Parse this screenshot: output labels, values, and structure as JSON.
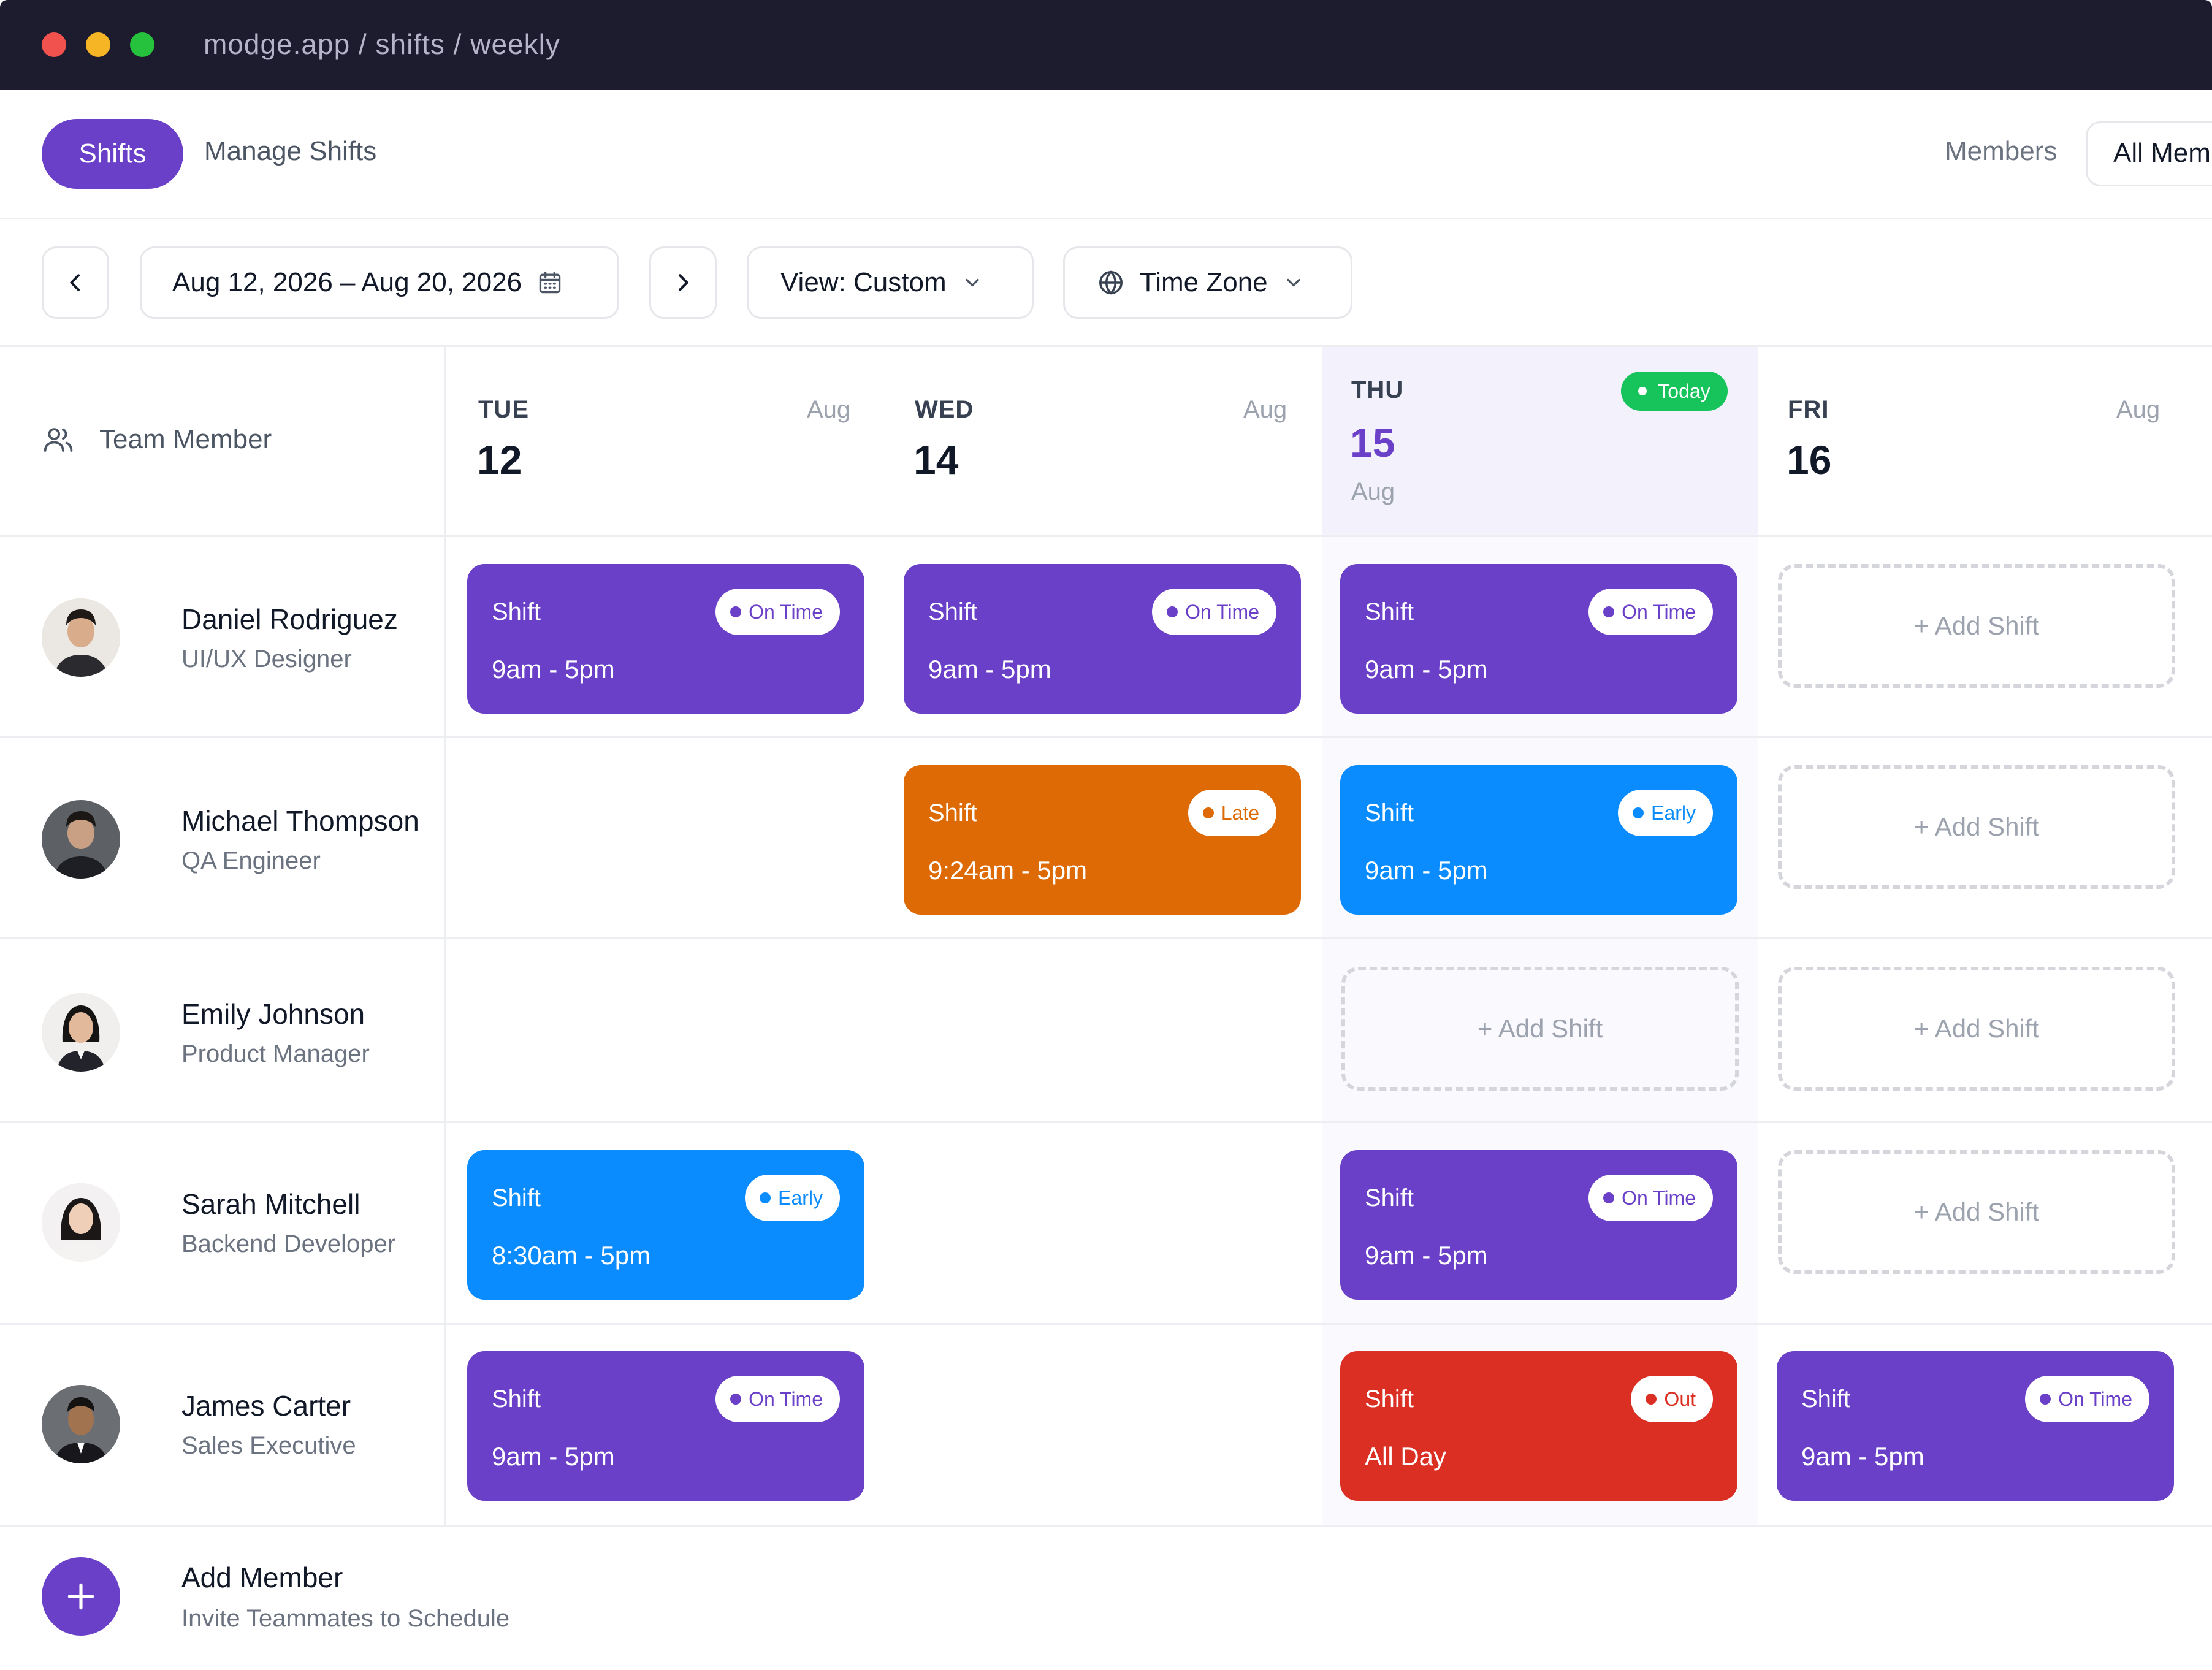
{
  "window": {
    "url": "modge.app / shifts / weekly"
  },
  "header": {
    "tabs": [
      {
        "label": "Shifts",
        "active": true
      },
      {
        "label": "Manage Shifts",
        "active": false
      }
    ],
    "members_label": "Members",
    "members_filter": "All Members"
  },
  "toolbar": {
    "date_range": "Aug 12, 2026 – Aug 20, 2026",
    "view": "View: Custom",
    "timezone": "Time Zone"
  },
  "grid": {
    "member_column_label": "Team Member",
    "days": [
      {
        "name": "TUE",
        "num": "12",
        "month": "Aug",
        "today": false
      },
      {
        "name": "WED",
        "num": "14",
        "month": "Aug",
        "today": false
      },
      {
        "name": "THU",
        "num": "15",
        "month": "Aug",
        "today": true,
        "badge": "Today"
      },
      {
        "name": "FRI",
        "num": "16",
        "month": "Aug",
        "today": false
      }
    ]
  },
  "add_shift_label": "+ Add Shift",
  "shift_label": "Shift",
  "members": [
    {
      "name": "Daniel Rodriguez",
      "role": "UI/UX Designer",
      "cells": [
        {
          "kind": "shift",
          "status": "On Time",
          "time": "9am - 5pm",
          "color": "#6a40c8"
        },
        {
          "kind": "shift",
          "status": "On Time",
          "time": "9am - 5pm",
          "color": "#6a40c8"
        },
        {
          "kind": "shift",
          "status": "On Time",
          "time": "9am - 5pm",
          "color": "#6a40c8"
        },
        {
          "kind": "add"
        }
      ]
    },
    {
      "name": "Michael Thompson",
      "role": "QA Engineer",
      "cells": [
        {
          "kind": "empty"
        },
        {
          "kind": "shift",
          "status": "Late",
          "time": "9:24am - 5pm",
          "color": "#de6a06"
        },
        {
          "kind": "shift",
          "status": "Early",
          "time": "9am - 5pm",
          "color": "#0a8cff"
        },
        {
          "kind": "add"
        }
      ]
    },
    {
      "name": "Emily Johnson",
      "role": "Product Manager",
      "cells": [
        {
          "kind": "empty"
        },
        {
          "kind": "empty"
        },
        {
          "kind": "add"
        },
        {
          "kind": "add"
        }
      ]
    },
    {
      "name": "Sarah Mitchell",
      "role": "Backend Developer",
      "cells": [
        {
          "kind": "shift",
          "status": "Early",
          "time": "8:30am - 5pm",
          "color": "#0a8cff"
        },
        {
          "kind": "empty"
        },
        {
          "kind": "shift",
          "status": "On Time",
          "time": "9am - 5pm",
          "color": "#6a40c8"
        },
        {
          "kind": "add"
        }
      ]
    },
    {
      "name": "James Carter",
      "role": "Sales Executive",
      "cells": [
        {
          "kind": "shift",
          "status": "On Time",
          "time": "9am - 5pm",
          "color": "#6a40c8"
        },
        {
          "kind": "empty"
        },
        {
          "kind": "shift",
          "status": "Out",
          "time": "All Day",
          "color": "#dc2f24"
        },
        {
          "kind": "shift",
          "status": "On Time",
          "time": "9am - 5pm",
          "color": "#6a40c8"
        }
      ]
    }
  ],
  "footer": {
    "add_member_title": "Add Member",
    "add_member_subtitle": "Invite Teammates to Schedule"
  },
  "colors": {
    "accent": "#6a40c8",
    "late": "#de6a06",
    "early": "#0a8cff",
    "out": "#dc2f24",
    "today_badge": "#16c45b"
  }
}
